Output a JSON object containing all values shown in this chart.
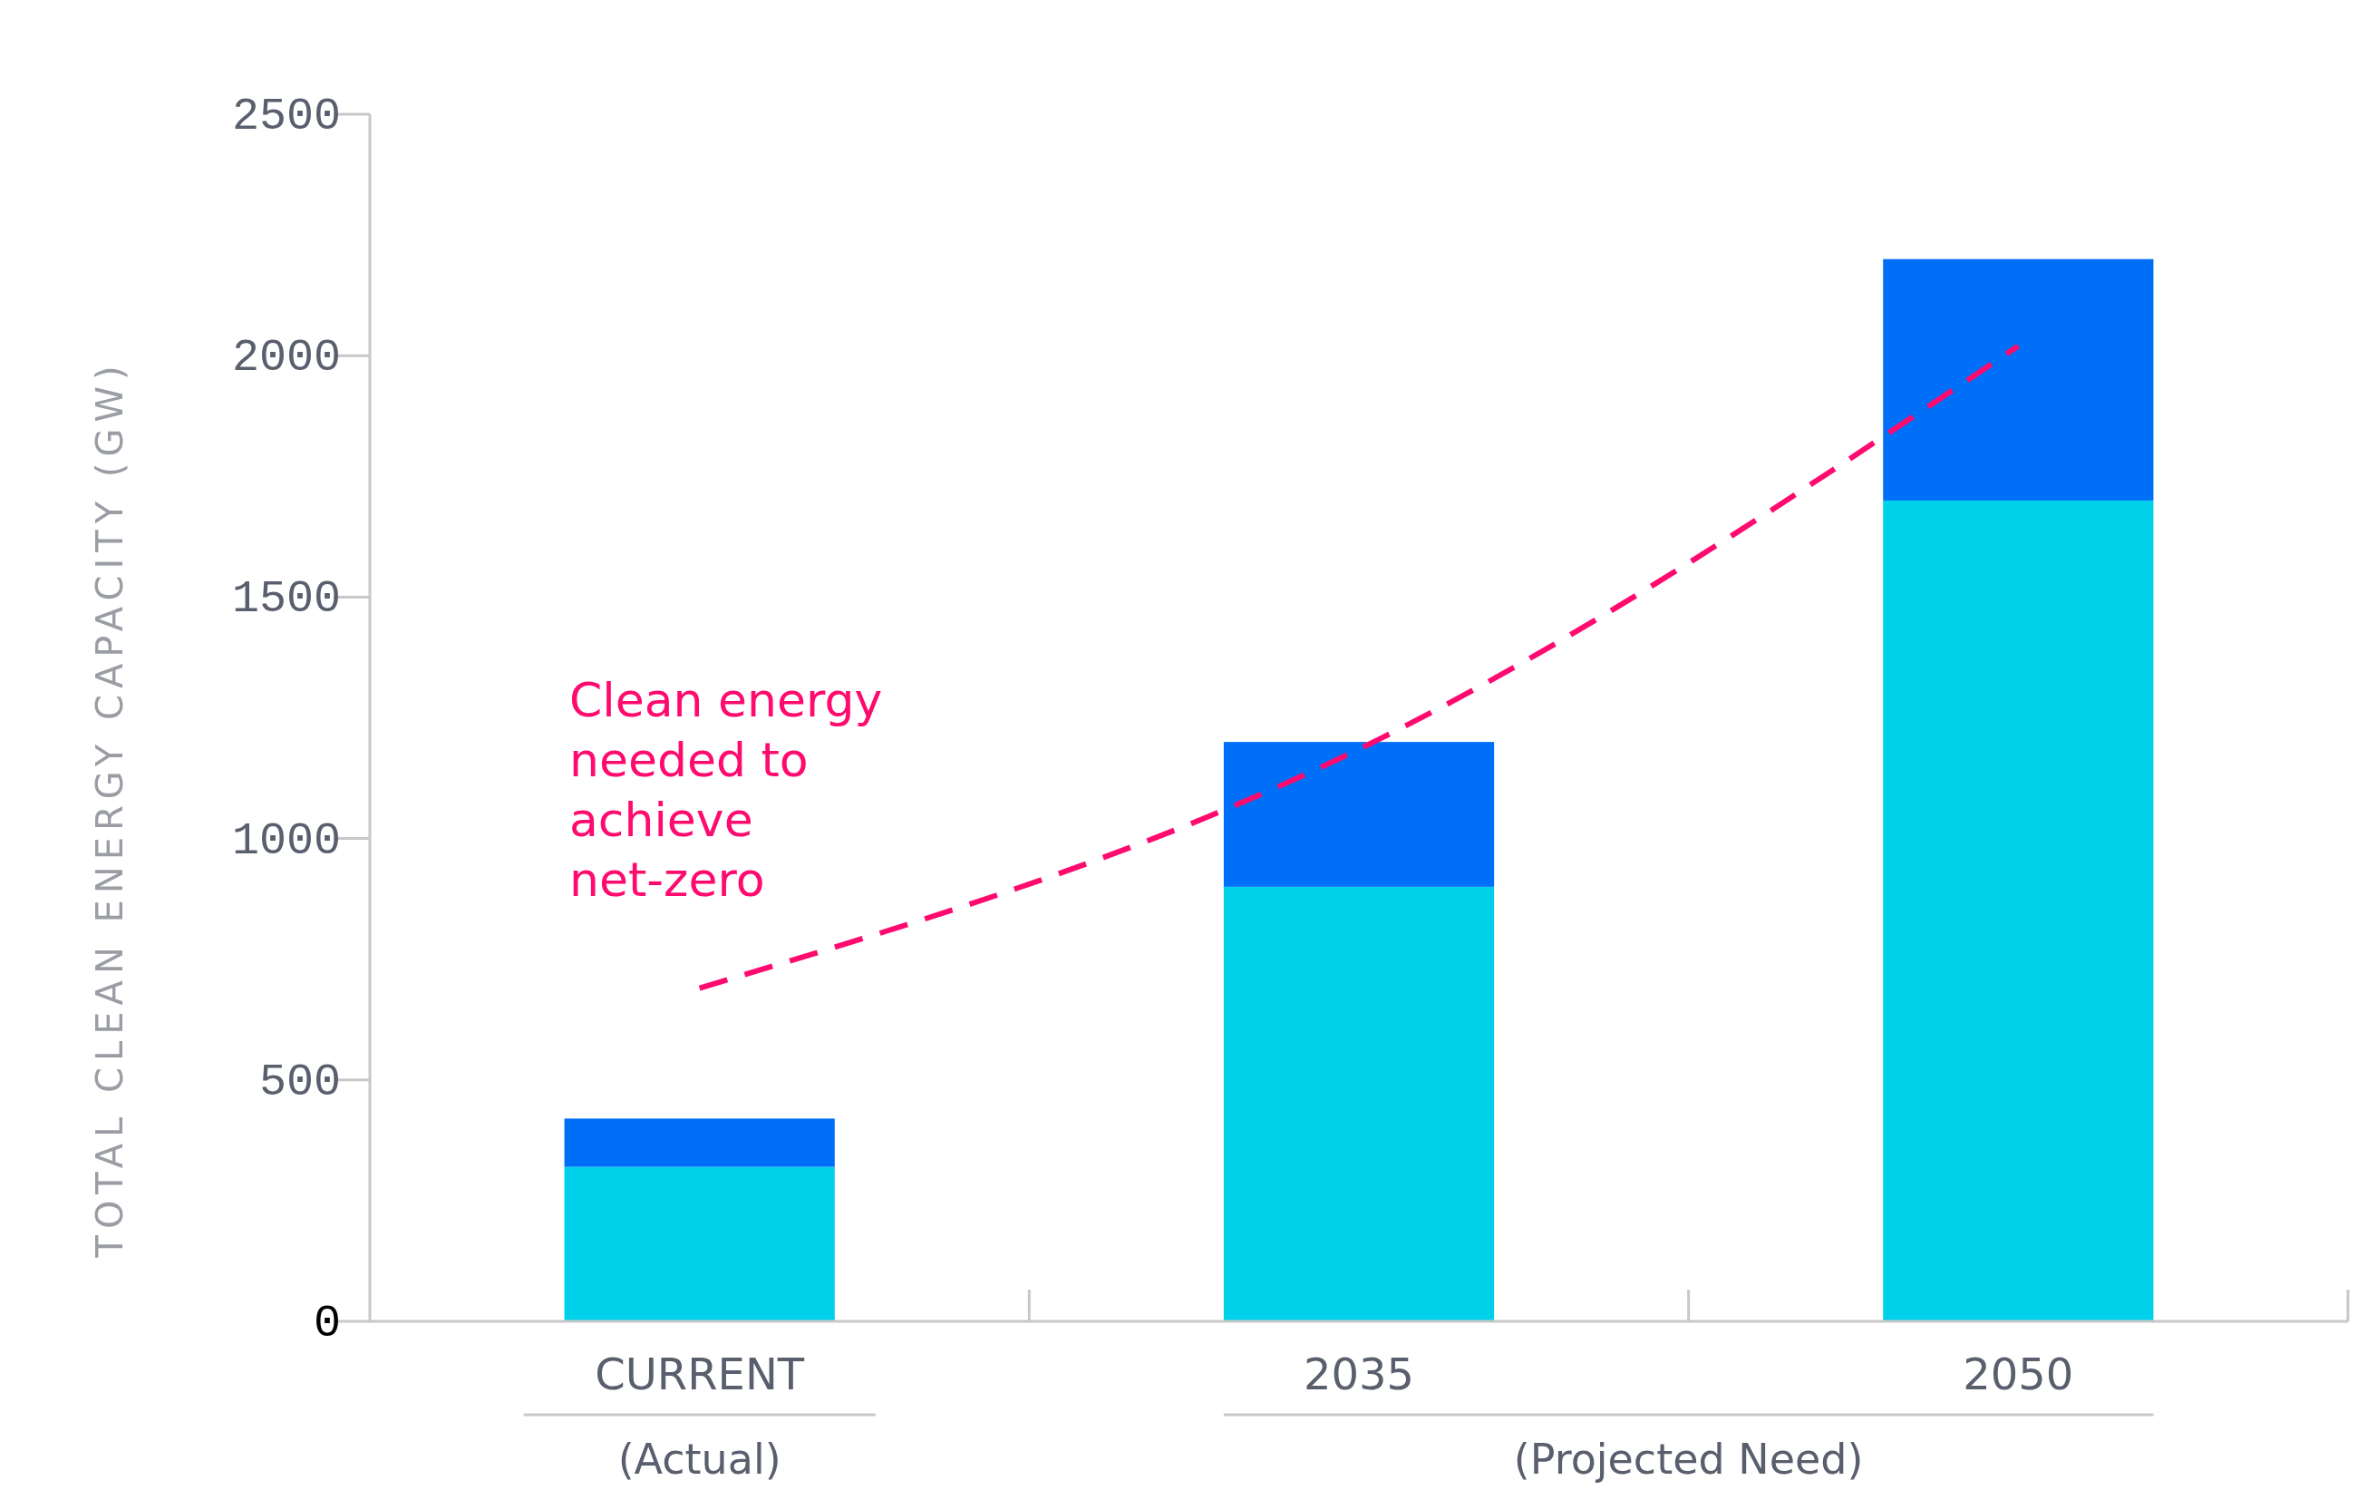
{
  "chart_data": {
    "type": "bar",
    "ylabel": "TOTAL CLEAN ENERGY CAPACITY (GW)",
    "categories": [
      "CURRENT",
      "2035",
      "2050"
    ],
    "stacked": true,
    "series": [
      {
        "color": "#00d1ea",
        "values": [
          320,
          900,
          1700
        ]
      },
      {
        "color": "#006ff7",
        "values": [
          100,
          300,
          500
        ]
      },
      {
        "type": "line",
        "name": "Clean energy needed to achieve net-zero",
        "color": "#ff0a6e",
        "line_style": "dashed",
        "marker": "none",
        "values": [
          690,
          1185,
          2020
        ]
      }
    ],
    "ylim": [
      0,
      2500
    ],
    "yticks": [
      0,
      500,
      1000,
      1500,
      2000,
      2500
    ],
    "grid": false,
    "annotations": [
      "(Actual)",
      "(Projected Need)"
    ]
  }
}
